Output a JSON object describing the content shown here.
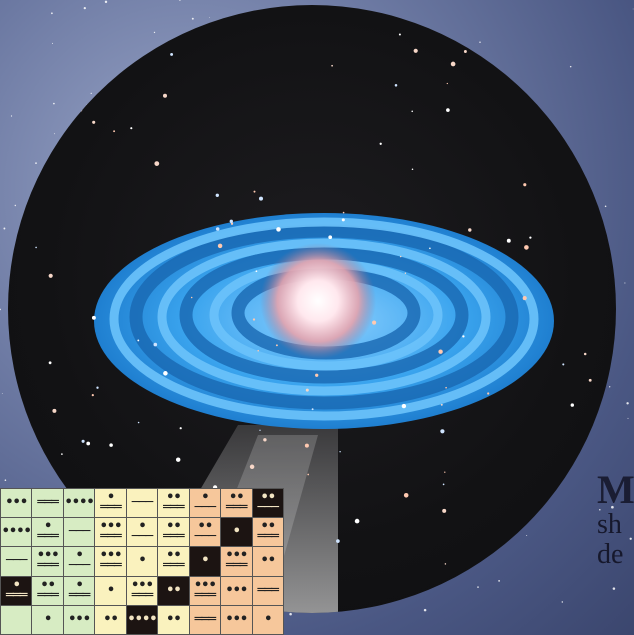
{
  "caption": {
    "heading": "M",
    "line1": "sh",
    "line2": "de"
  },
  "colors": {
    "sky": "#5a6792",
    "disc_blue": "#3fa6ef",
    "core": "#f3d2d7",
    "table_green": "#d7ecc3",
    "table_yellow": "#faf2be",
    "table_orange": "#f6c79b",
    "table_dark": "#1c1412"
  },
  "table": {
    "rows": [
      [
        "•••",
        "═══",
        "••••",
        "•\n═══",
        "───",
        "••\n═══",
        "•\n───",
        "••\n═══",
        "••\n───"
      ],
      [
        "••••",
        "•\n═══",
        "───",
        "•••\n═══",
        "•\n───",
        "••\n═══",
        "••\n───",
        "•",
        "••\n═══"
      ],
      [
        "───",
        "•••\n═══",
        "•\n───",
        "•••\n═══",
        "•",
        "••\n═══",
        "•",
        "•••\n═══",
        "••"
      ],
      [
        "•\n═══",
        "••\n═══",
        "•\n═══",
        "•",
        "•••\n═══",
        "••",
        "•••\n═══",
        "•••",
        "═══"
      ],
      [
        "",
        "•",
        "•••",
        "••",
        "••••",
        "••",
        "═══",
        "•••",
        "•"
      ]
    ],
    "colorClasses": [
      [
        "c-green",
        "c-green",
        "c-green",
        "c-yellow",
        "c-yellow",
        "c-yellow",
        "c-orange",
        "c-orange",
        "c-dark"
      ],
      [
        "c-green",
        "c-green",
        "c-green",
        "c-yellow",
        "c-yellow",
        "c-yellow",
        "c-orange",
        "c-dark",
        "c-orange"
      ],
      [
        "c-green",
        "c-green",
        "c-green",
        "c-yellow",
        "c-yellow",
        "c-yellow",
        "c-dark",
        "c-orange",
        "c-orange"
      ],
      [
        "c-dark",
        "c-green",
        "c-green",
        "c-yellow",
        "c-yellow",
        "c-dark",
        "c-orange",
        "c-orange",
        "c-orange"
      ],
      [
        "c-green",
        "c-green",
        "c-green",
        "c-yellow",
        "c-dark",
        "c-yellow",
        "c-orange",
        "c-orange",
        "c-orange"
      ]
    ]
  }
}
